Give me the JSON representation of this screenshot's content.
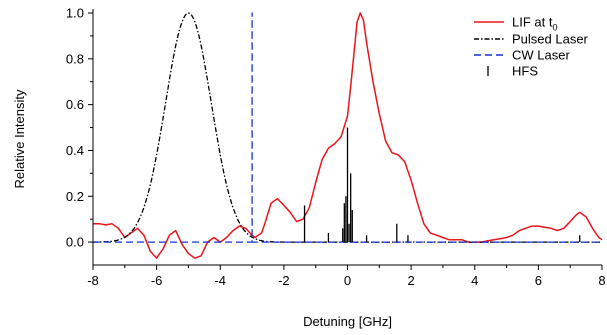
{
  "chart_data": {
    "type": "line",
    "title": "",
    "xlabel": "Detuning [GHz]",
    "ylabel": "Relative Intensity",
    "xlim": [
      -8,
      8
    ],
    "ylim": [
      -0.1,
      1.0
    ],
    "x_ticks": [
      -8,
      -6,
      -4,
      -2,
      0,
      2,
      4,
      6,
      8
    ],
    "y_ticks": [
      0.0,
      0.2,
      0.4,
      0.6,
      0.8,
      1.0
    ],
    "x_tick_labels": [
      "-8",
      "-6",
      "-4",
      "-2",
      "0",
      "2",
      "4",
      "6",
      "8"
    ],
    "y_tick_labels": [
      "0.0",
      "0.2",
      "0.4",
      "0.6",
      "0.8",
      "1.0"
    ],
    "grid": false,
    "legend_position": "top-right",
    "series": [
      {
        "name": "LIF at t",
        "name_subscript": "0",
        "color": "#e8151b",
        "style": "solid",
        "points": [
          [
            -8.0,
            0.08
          ],
          [
            -7.8,
            0.08
          ],
          [
            -7.6,
            0.075
          ],
          [
            -7.4,
            0.08
          ],
          [
            -7.2,
            0.06
          ],
          [
            -7.0,
            0.02
          ],
          [
            -6.8,
            0.04
          ],
          [
            -6.6,
            0.06
          ],
          [
            -6.4,
            0.03
          ],
          [
            -6.2,
            -0.04
          ],
          [
            -6.0,
            -0.07
          ],
          [
            -5.8,
            -0.03
          ],
          [
            -5.6,
            0.03
          ],
          [
            -5.4,
            0.05
          ],
          [
            -5.2,
            -0.01
          ],
          [
            -5.0,
            -0.05
          ],
          [
            -4.8,
            -0.07
          ],
          [
            -4.6,
            -0.06
          ],
          [
            -4.4,
            0.0
          ],
          [
            -4.2,
            0.02
          ],
          [
            -4.0,
            0.0
          ],
          [
            -3.8,
            0.02
          ],
          [
            -3.6,
            0.05
          ],
          [
            -3.4,
            0.07
          ],
          [
            -3.2,
            0.06
          ],
          [
            -3.0,
            0.03
          ],
          [
            -2.9,
            0.02
          ],
          [
            -2.8,
            0.03
          ],
          [
            -2.7,
            0.04
          ],
          [
            -2.6,
            0.08
          ],
          [
            -2.4,
            0.17
          ],
          [
            -2.2,
            0.19
          ],
          [
            -2.0,
            0.16
          ],
          [
            -1.8,
            0.13
          ],
          [
            -1.6,
            0.09
          ],
          [
            -1.4,
            0.1
          ],
          [
            -1.2,
            0.15
          ],
          [
            -1.0,
            0.26
          ],
          [
            -0.8,
            0.36
          ],
          [
            -0.6,
            0.41
          ],
          [
            -0.4,
            0.43
          ],
          [
            -0.2,
            0.46
          ],
          [
            0.0,
            0.55
          ],
          [
            0.1,
            0.68
          ],
          [
            0.2,
            0.82
          ],
          [
            0.3,
            0.96
          ],
          [
            0.4,
            1.0
          ],
          [
            0.5,
            0.97
          ],
          [
            0.6,
            0.87
          ],
          [
            0.8,
            0.7
          ],
          [
            1.0,
            0.56
          ],
          [
            1.2,
            0.44
          ],
          [
            1.4,
            0.39
          ],
          [
            1.6,
            0.38
          ],
          [
            1.8,
            0.35
          ],
          [
            2.0,
            0.27
          ],
          [
            2.2,
            0.17
          ],
          [
            2.4,
            0.08
          ],
          [
            2.6,
            0.04
          ],
          [
            2.8,
            0.03
          ],
          [
            3.0,
            0.02
          ],
          [
            3.2,
            0.01
          ],
          [
            3.4,
            0.01
          ],
          [
            3.6,
            0.01
          ],
          [
            3.8,
            0.0
          ],
          [
            4.0,
            0.0
          ],
          [
            4.2,
            0.0
          ],
          [
            4.4,
            0.005
          ],
          [
            4.6,
            0.01
          ],
          [
            4.8,
            0.015
          ],
          [
            5.0,
            0.02
          ],
          [
            5.2,
            0.03
          ],
          [
            5.4,
            0.05
          ],
          [
            5.6,
            0.06
          ],
          [
            5.8,
            0.07
          ],
          [
            6.0,
            0.07
          ],
          [
            6.2,
            0.065
          ],
          [
            6.4,
            0.06
          ],
          [
            6.6,
            0.05
          ],
          [
            6.8,
            0.06
          ],
          [
            7.0,
            0.09
          ],
          [
            7.2,
            0.12
          ],
          [
            7.3,
            0.13
          ],
          [
            7.5,
            0.11
          ],
          [
            7.7,
            0.06
          ],
          [
            7.9,
            0.02
          ],
          [
            8.0,
            0.01
          ]
        ]
      },
      {
        "name": "Pulsed Laser",
        "color": "#000000",
        "style": "dash-dot",
        "function": "gaussian",
        "center": -5.0,
        "amplitude": 1.0,
        "sigma": 0.72
      },
      {
        "name": "CW Laser",
        "color": "#1530d8",
        "style": "dashed",
        "points": [
          [
            -8.0,
            0.0
          ],
          [
            -3.0,
            0.0
          ],
          [
            -3.0,
            1.0
          ],
          [
            -3.0,
            0.0
          ],
          [
            8.0,
            0.0
          ]
        ]
      },
      {
        "name": "HFS",
        "color": "#000000",
        "style": "sticks",
        "sticks": [
          [
            -1.35,
            0.16
          ],
          [
            -0.6,
            0.04
          ],
          [
            -0.15,
            0.06
          ],
          [
            -0.1,
            0.17
          ],
          [
            -0.05,
            0.2
          ],
          [
            0.0,
            0.5
          ],
          [
            0.05,
            0.08
          ],
          [
            0.1,
            0.3
          ],
          [
            0.15,
            0.14
          ],
          [
            0.6,
            0.03
          ],
          [
            1.55,
            0.08
          ],
          [
            1.9,
            0.03
          ],
          [
            7.3,
            0.03
          ]
        ]
      }
    ]
  }
}
